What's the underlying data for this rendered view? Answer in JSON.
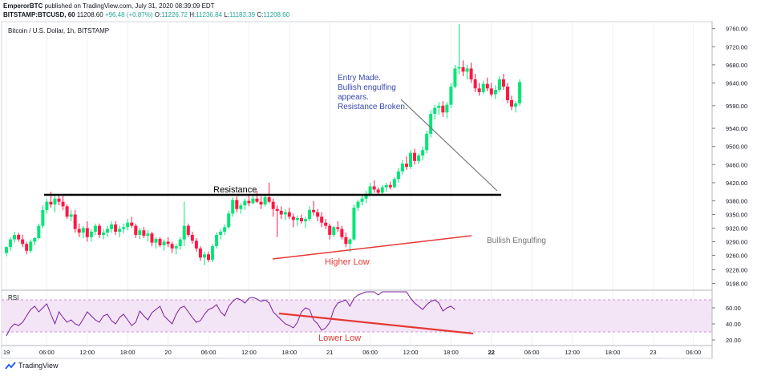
{
  "header": {
    "author": "EmperorBTC",
    "published": "published on TradingView.com, July 31, 2020 08:39:09 EDT",
    "symbol": "BITSTAMP:BTCUSD, 60",
    "last": "11208.60",
    "change": "+96.48 (+0.87%)",
    "o_label": "O:",
    "o_val": "11226.72",
    "h_label": "H:",
    "h_val": "11236.84",
    "l_label": "L:",
    "l_val": "11183.39",
    "c_label": "C:",
    "c_val": "11208.60"
  },
  "chart_title": "Bitcoin / U.S. Dollar, 1h, BITSTAMP",
  "rsi_label": "RSI",
  "footer_brand": "TradingView",
  "colors": {
    "up": "#00e676",
    "down": "#ff1744",
    "rsi_line": "#7b1fa2",
    "rsi_band": "#f3e5f5",
    "annot_blue": "#3949ab",
    "annot_red": "#e53935",
    "grid": "#eef0f4"
  },
  "chart_data": [
    {
      "type": "candlestick",
      "title": "Bitcoin / U.S. Dollar, 1h, BITSTAMP",
      "ylim": [
        9190,
        9770
      ],
      "price_ticks": [
        "9760.00",
        "9720.00",
        "9680.00",
        "9640.00",
        "9590.00",
        "9540.00",
        "9500.00",
        "9460.00",
        "9420.00",
        "9380.00",
        "9350.00",
        "9320.00",
        "9290.00",
        "9260.00",
        "9228.00",
        "9198.00"
      ],
      "x_ticks": [
        {
          "i": 0,
          "label": "19"
        },
        {
          "i": 10,
          "label": "06:00"
        },
        {
          "i": 20,
          "label": "12:00"
        },
        {
          "i": 30,
          "label": "18:00"
        },
        {
          "i": 40,
          "label": "20"
        },
        {
          "i": 50,
          "label": "06:00"
        },
        {
          "i": 60,
          "label": "12:00"
        },
        {
          "i": 70,
          "label": "18:00"
        },
        {
          "i": 80,
          "label": "21"
        },
        {
          "i": 90,
          "label": "06:00"
        },
        {
          "i": 100,
          "label": "12:00"
        },
        {
          "i": 110,
          "label": "18:00"
        },
        {
          "i": 120,
          "label": "22"
        },
        {
          "i": 130,
          "label": "06:00"
        },
        {
          "i": 140,
          "label": "12:00"
        },
        {
          "i": 150,
          "label": "18:00"
        },
        {
          "i": 160,
          "label": "23"
        },
        {
          "i": 170,
          "label": "06:00"
        }
      ],
      "candles": [
        [
          9265,
          9280,
          9258,
          9278
        ],
        [
          9278,
          9300,
          9270,
          9295
        ],
        [
          9295,
          9312,
          9288,
          9305
        ],
        [
          9305,
          9310,
          9290,
          9295
        ],
        [
          9295,
          9305,
          9278,
          9285
        ],
        [
          9285,
          9290,
          9262,
          9270
        ],
        [
          9270,
          9295,
          9265,
          9290
        ],
        [
          9290,
          9300,
          9282,
          9298
        ],
        [
          9298,
          9330,
          9295,
          9325
        ],
        [
          9325,
          9370,
          9320,
          9360
        ],
        [
          9360,
          9385,
          9352,
          9378
        ],
        [
          9378,
          9400,
          9365,
          9372
        ],
        [
          9372,
          9395,
          9355,
          9385
        ],
        [
          9385,
          9395,
          9370,
          9378
        ],
        [
          9378,
          9392,
          9360,
          9368
        ],
        [
          9368,
          9372,
          9340,
          9345
        ],
        [
          9345,
          9360,
          9335,
          9350
        ],
        [
          9350,
          9360,
          9310,
          9318
        ],
        [
          9318,
          9330,
          9300,
          9310
        ],
        [
          9310,
          9325,
          9298,
          9320
        ],
        [
          9320,
          9335,
          9290,
          9300
        ],
        [
          9300,
          9318,
          9290,
          9312
        ],
        [
          9312,
          9330,
          9305,
          9325
        ],
        [
          9325,
          9330,
          9298,
          9305
        ],
        [
          9305,
          9318,
          9295,
          9310
        ],
        [
          9310,
          9325,
          9300,
          9318
        ],
        [
          9318,
          9335,
          9310,
          9328
        ],
        [
          9328,
          9335,
          9305,
          9312
        ],
        [
          9312,
          9325,
          9300,
          9318
        ],
        [
          9318,
          9330,
          9308,
          9322
        ],
        [
          9322,
          9340,
          9315,
          9332
        ],
        [
          9332,
          9345,
          9320,
          9325
        ],
        [
          9325,
          9330,
          9298,
          9305
        ],
        [
          9305,
          9320,
          9295,
          9315
        ],
        [
          9315,
          9322,
          9298,
          9303
        ],
        [
          9303,
          9315,
          9290,
          9308
        ],
        [
          9308,
          9312,
          9280,
          9288
        ],
        [
          9288,
          9300,
          9275,
          9296
        ],
        [
          9296,
          9300,
          9278,
          9282
        ],
        [
          9282,
          9295,
          9270,
          9290
        ],
        [
          9290,
          9300,
          9278,
          9285
        ],
        [
          9285,
          9290,
          9265,
          9275
        ],
        [
          9275,
          9285,
          9262,
          9280
        ],
        [
          9280,
          9300,
          9272,
          9295
        ],
        [
          9295,
          9378,
          9280,
          9325
        ],
        [
          9325,
          9330,
          9300,
          9305
        ],
        [
          9305,
          9312,
          9285,
          9292
        ],
        [
          9292,
          9298,
          9268,
          9275
        ],
        [
          9275,
          9280,
          9248,
          9255
        ],
        [
          9255,
          9268,
          9238,
          9262
        ],
        [
          9262,
          9268,
          9245,
          9250
        ],
        [
          9250,
          9285,
          9245,
          9280
        ],
        [
          9280,
          9310,
          9275,
          9305
        ],
        [
          9305,
          9318,
          9295,
          9312
        ],
        [
          9312,
          9328,
          9305,
          9322
        ],
        [
          9322,
          9358,
          9318,
          9352
        ],
        [
          9352,
          9388,
          9345,
          9382
        ],
        [
          9382,
          9390,
          9355,
          9362
        ],
        [
          9362,
          9375,
          9352,
          9370
        ],
        [
          9370,
          9385,
          9360,
          9380
        ],
        [
          9380,
          9392,
          9368,
          9375
        ],
        [
          9375,
          9395,
          9372,
          9385
        ],
        [
          9385,
          9402,
          9375,
          9378
        ],
        [
          9378,
          9390,
          9362,
          9372
        ],
        [
          9372,
          9392,
          9368,
          9388
        ],
        [
          9388,
          9420,
          9375,
          9378
        ],
        [
          9378,
          9385,
          9345,
          9362
        ],
        [
          9362,
          9370,
          9300,
          9358
        ],
        [
          9358,
          9368,
          9340,
          9350
        ],
        [
          9350,
          9362,
          9338,
          9355
        ],
        [
          9355,
          9365,
          9340,
          9345
        ],
        [
          9345,
          9352,
          9322,
          9338
        ],
        [
          9338,
          9348,
          9325,
          9342
        ],
        [
          9342,
          9350,
          9330,
          9335
        ],
        [
          9335,
          9345,
          9320,
          9340
        ],
        [
          9340,
          9368,
          9335,
          9360
        ],
        [
          9360,
          9380,
          9348,
          9355
        ],
        [
          9355,
          9362,
          9335,
          9345
        ],
        [
          9345,
          9355,
          9322,
          9332
        ],
        [
          9332,
          9340,
          9318,
          9325
        ],
        [
          9325,
          9330,
          9295,
          9305
        ],
        [
          9305,
          9325,
          9300,
          9322
        ],
        [
          9322,
          9335,
          9312,
          9318
        ],
        [
          9318,
          9325,
          9295,
          9300
        ],
        [
          9300,
          9310,
          9278,
          9285
        ],
        [
          9285,
          9298,
          9268,
          9295
        ],
        [
          9295,
          9372,
          9292,
          9365
        ],
        [
          9365,
          9382,
          9358,
          9378
        ],
        [
          9378,
          9392,
          9370,
          9385
        ],
        [
          9385,
          9402,
          9375,
          9395
        ],
        [
          9395,
          9420,
          9390,
          9412
        ],
        [
          9412,
          9425,
          9398,
          9405
        ],
        [
          9405,
          9410,
          9392,
          9398
        ],
        [
          9398,
          9415,
          9394,
          9410
        ],
        [
          9410,
          9420,
          9400,
          9415
        ],
        [
          9415,
          9422,
          9405,
          9410
        ],
        [
          9410,
          9432,
          9408,
          9428
        ],
        [
          9428,
          9452,
          9420,
          9445
        ],
        [
          9445,
          9470,
          9438,
          9462
        ],
        [
          9462,
          9478,
          9448,
          9455
        ],
        [
          9455,
          9492,
          9450,
          9486
        ],
        [
          9486,
          9495,
          9460,
          9468
        ],
        [
          9468,
          9485,
          9462,
          9480
        ],
        [
          9480,
          9500,
          9470,
          9492
        ],
        [
          9492,
          9535,
          9485,
          9528
        ],
        [
          9528,
          9580,
          9520,
          9572
        ],
        [
          9572,
          9592,
          9560,
          9585
        ],
        [
          9585,
          9598,
          9570,
          9590
        ],
        [
          9590,
          9600,
          9565,
          9575
        ],
        [
          9575,
          9598,
          9562,
          9592
        ],
        [
          9592,
          9640,
          9585,
          9632
        ],
        [
          9632,
          9680,
          9628,
          9672
        ],
        [
          9672,
          9770,
          9660,
          9675
        ],
        [
          9675,
          9690,
          9655,
          9665
        ],
        [
          9665,
          9680,
          9648,
          9672
        ],
        [
          9672,
          9685,
          9640,
          9648
        ],
        [
          9648,
          9660,
          9620,
          9628
        ],
        [
          9628,
          9640,
          9612,
          9620
        ],
        [
          9620,
          9645,
          9615,
          9638
        ],
        [
          9638,
          9652,
          9622,
          9628
        ],
        [
          9628,
          9640,
          9610,
          9615
        ],
        [
          9615,
          9635,
          9605,
          9625
        ],
        [
          9625,
          9655,
          9620,
          9648
        ],
        [
          9648,
          9660,
          9625,
          9632
        ],
        [
          9632,
          9640,
          9595,
          9602
        ],
        [
          9602,
          9612,
          9580,
          9588
        ],
        [
          9588,
          9600,
          9575,
          9595
        ],
        [
          9595,
          9648,
          9590,
          9642
        ]
      ]
    },
    {
      "type": "line",
      "title": "RSI",
      "ylim": [
        15,
        80
      ],
      "y_ticks": [
        "60.00",
        "40.00",
        "20.00"
      ],
      "band": [
        30,
        70
      ],
      "values": [
        25,
        35,
        40,
        38,
        42,
        50,
        58,
        62,
        55,
        60,
        65,
        52,
        40,
        55,
        48,
        42,
        45,
        40,
        38,
        46,
        55,
        50,
        45,
        42,
        50,
        52,
        44,
        40,
        48,
        52,
        45,
        38,
        42,
        56,
        50,
        45,
        54,
        58,
        62,
        50,
        45,
        40,
        52,
        60,
        62,
        55,
        48,
        42,
        44,
        52,
        58,
        60,
        64,
        55,
        50,
        62,
        68,
        72,
        70,
        66,
        72,
        73,
        71,
        68,
        70,
        66,
        55,
        50,
        45,
        40,
        38,
        35,
        42,
        55,
        60,
        58,
        45,
        40,
        32,
        35,
        42,
        58,
        66,
        68,
        70,
        62,
        72,
        76,
        78,
        82,
        84,
        80,
        76,
        82,
        84,
        82,
        80,
        82,
        84,
        80,
        72,
        66,
        62,
        58,
        64,
        68,
        70,
        66,
        56,
        60,
        62,
        58
      ],
      "annotations": [
        "Lower Low"
      ]
    }
  ],
  "annotations": {
    "resistance": "Resistance",
    "entry_lines": [
      "Entry Made.",
      "Bullish engulfing",
      "appears.",
      "Resistance Broken."
    ],
    "higher_low": "Higher Low",
    "bullish_engulfing": "Bullish Engulfing",
    "lower_low": "Lower Low"
  }
}
